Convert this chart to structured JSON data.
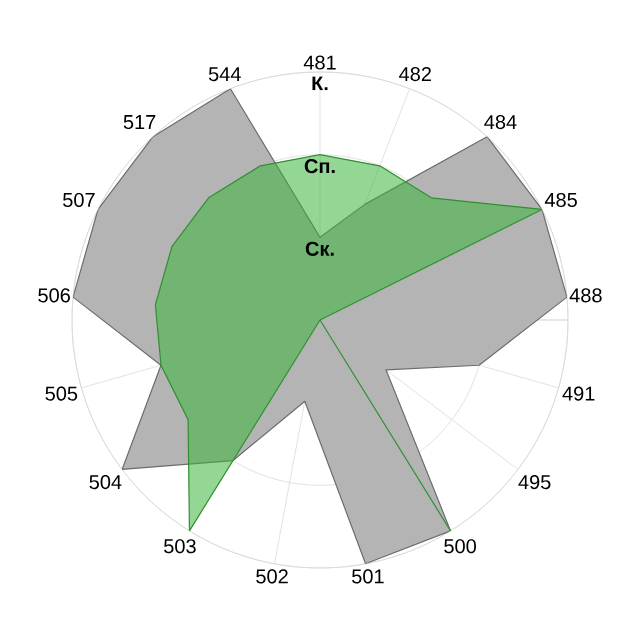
{
  "chart_data": {
    "type": "radar",
    "categories": [
      "481",
      "482",
      "484",
      "485",
      "488",
      "491",
      "495",
      "500",
      "501",
      "502",
      "503",
      "504",
      "505",
      "506",
      "507",
      "517",
      "544"
    ],
    "series": [
      {
        "color": "#b4b4b4",
        "values": [
          1,
          1.5,
          3,
          3,
          3,
          2,
          1,
          3,
          3,
          1,
          2,
          3,
          2,
          3,
          3,
          3,
          3
        ]
      },
      {
        "color": "#3cb43c",
        "values": [
          2,
          2,
          2,
          3,
          0,
          0,
          0,
          3,
          0,
          0,
          3,
          2,
          2,
          2,
          2,
          2,
          2
        ]
      }
    ],
    "ylim": [
      0,
      3
    ],
    "yticks": [
      {
        "value": 1,
        "label": "Ск."
      },
      {
        "value": 2,
        "label": "Сп."
      },
      {
        "value": 3,
        "label": "К."
      }
    ],
    "grid": true
  }
}
